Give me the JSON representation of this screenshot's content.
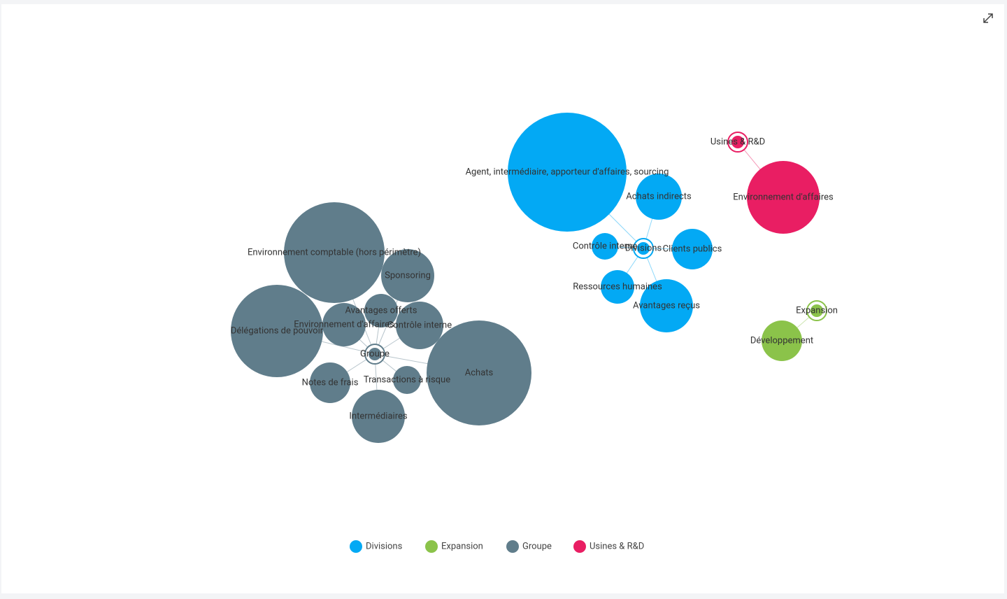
{
  "groups": [
    {
      "name": "Divisions",
      "color": "#03a9f4",
      "children": [
        "Agent, intermédiaire, apporteur d'affaires, sourcing",
        "Achats indirects",
        "Contrôle interne",
        "Clients publics",
        "Ressources humaines",
        "Avantages reçus"
      ]
    },
    {
      "name": "Expansion",
      "color": "#8bc34a",
      "children": [
        "Développement"
      ]
    },
    {
      "name": "Groupe",
      "color": "#607d8b",
      "children": [
        "Environnement comptable (hors périmètre)",
        "Sponsoring",
        "Avantages offerts",
        "Délégations de pouvoir",
        "Environnement d'affaires",
        "Contrôle interne",
        "Achats",
        "Notes de frais",
        "Transactions à risque",
        "Intermédiaires"
      ]
    },
    {
      "name": "Usines & R&D",
      "color": "#e91e63",
      "children": [
        "Environnement d'affaires"
      ]
    }
  ]
}
